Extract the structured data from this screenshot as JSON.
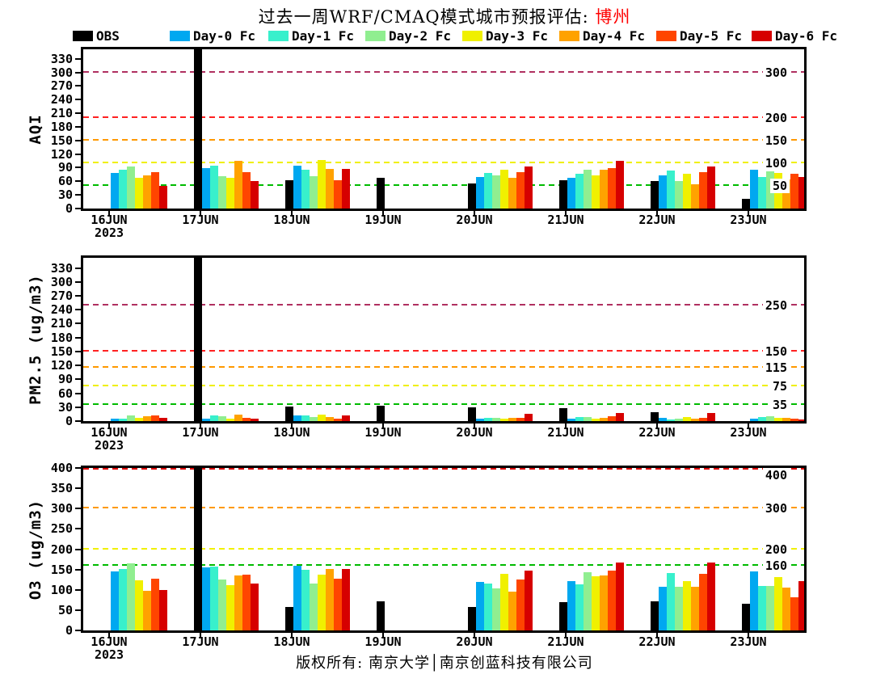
{
  "title": {
    "prefix": "过去一周WRF/CMAQ模式城市预报评估: ",
    "city": "博州",
    "city_color": "#FF0000"
  },
  "legend": {
    "items": [
      {
        "label": "OBS",
        "color": "#000000"
      },
      {
        "label": "Day-0 Fc",
        "color": "#00A8F0"
      },
      {
        "label": "Day-1 Fc",
        "color": "#38F0CC"
      },
      {
        "label": "Day-2 Fc",
        "color": "#90EE90"
      },
      {
        "label": "Day-3 Fc",
        "color": "#F0F000"
      },
      {
        "label": "Day-4 Fc",
        "color": "#FFA200"
      },
      {
        "label": "Day-5 Fc",
        "color": "#FF4500"
      },
      {
        "label": "Day-6 Fc",
        "color": "#D60000"
      }
    ]
  },
  "footer": {
    "text": "版权所有: 南京大学│南京创蓝科技有限公司"
  },
  "x_axis": {
    "categories": [
      "16JUN",
      "17JUN",
      "18JUN",
      "19JUN",
      "20JUN",
      "21JUN",
      "22JUN",
      "23JUN"
    ],
    "year_label": "2023"
  },
  "note": "OBS bars on 17JUN exceed the y-axis range and are clipped at the top of each panel. Missing bars = no data (no OBS on 16JUN; no forecasts on 19JUN).",
  "chart_data": [
    {
      "id": "aqi",
      "type": "bar",
      "title": "AQI",
      "xlabel": "",
      "ylabel": "AQI",
      "ylim": [
        0,
        351
      ],
      "yticks": [
        0,
        30,
        60,
        90,
        120,
        150,
        180,
        210,
        240,
        270,
        300,
        330
      ],
      "grid": "horizontal dashed threshold guides",
      "legend_position": "top",
      "categories": [
        "16JUN",
        "17JUN",
        "18JUN",
        "19JUN",
        "20JUN",
        "21JUN",
        "22JUN",
        "23JUN"
      ],
      "guides": [
        {
          "label": "50",
          "value": 50,
          "color": "#00BB00"
        },
        {
          "label": "100",
          "value": 100,
          "color": "#F0F000"
        },
        {
          "label": "150",
          "value": 150,
          "color": "#FF9900"
        },
        {
          "label": "200",
          "value": 200,
          "color": "#FF2222"
        },
        {
          "label": "300",
          "value": 300,
          "color": "#B03060"
        }
      ],
      "series": [
        {
          "name": "OBS",
          "color": "#000000",
          "values": [
            null,
            360,
            62,
            68,
            55,
            63,
            60,
            22
          ]
        },
        {
          "name": "Day-0 Fc",
          "color": "#00A8F0",
          "values": [
            78,
            90,
            95,
            null,
            70,
            68,
            73,
            85
          ]
        },
        {
          "name": "Day-1 Fc",
          "color": "#38F0CC",
          "values": [
            86,
            95,
            85,
            null,
            78,
            76,
            83,
            70
          ]
        },
        {
          "name": "Day-2 Fc",
          "color": "#90EE90",
          "values": [
            92,
            72,
            72,
            null,
            73,
            85,
            60,
            82
          ]
        },
        {
          "name": "Day-3 Fc",
          "color": "#F0F000",
          "values": [
            67,
            67,
            107,
            null,
            85,
            73,
            76,
            78
          ]
        },
        {
          "name": "Day-4 Fc",
          "color": "#FFA200",
          "values": [
            73,
            105,
            88,
            null,
            68,
            85,
            53,
            65
          ]
        },
        {
          "name": "Day-5 Fc",
          "color": "#FF4500",
          "values": [
            80,
            80,
            63,
            null,
            80,
            90,
            80,
            76
          ]
        },
        {
          "name": "Day-6 Fc",
          "color": "#D60000",
          "values": [
            50,
            60,
            88,
            null,
            93,
            105,
            93,
            70
          ]
        }
      ]
    },
    {
      "id": "pm25",
      "type": "bar",
      "title": "PM2.5",
      "xlabel": "",
      "ylabel": "PM2.5 (ug/m3)",
      "ylim": [
        0,
        352
      ],
      "yticks": [
        0,
        30,
        60,
        90,
        120,
        150,
        180,
        210,
        240,
        270,
        300,
        330
      ],
      "grid": "horizontal dashed threshold guides",
      "legend_position": "top",
      "categories": [
        "16JUN",
        "17JUN",
        "18JUN",
        "19JUN",
        "20JUN",
        "21JUN",
        "22JUN",
        "23JUN"
      ],
      "guides": [
        {
          "label": "35",
          "value": 35,
          "color": "#00BB00"
        },
        {
          "label": "75",
          "value": 75,
          "color": "#F0F000"
        },
        {
          "label": "115",
          "value": 115,
          "color": "#FF9900"
        },
        {
          "label": "150",
          "value": 150,
          "color": "#FF2222"
        },
        {
          "label": "250",
          "value": 250,
          "color": "#B03060"
        }
      ],
      "series": [
        {
          "name": "OBS",
          "color": "#000000",
          "values": [
            null,
            360,
            32,
            34,
            30,
            28,
            20,
            null
          ]
        },
        {
          "name": "Day-0 Fc",
          "color": "#00A8F0",
          "values": [
            5,
            5,
            12,
            null,
            5,
            5,
            7,
            6
          ]
        },
        {
          "name": "Day-1 Fc",
          "color": "#38F0CC",
          "values": [
            5,
            13,
            12,
            null,
            7,
            8,
            4,
            8
          ]
        },
        {
          "name": "Day-2 Fc",
          "color": "#90EE90",
          "values": [
            13,
            10,
            8,
            null,
            7,
            8,
            6,
            11
          ]
        },
        {
          "name": "Day-3 Fc",
          "color": "#F0F000",
          "values": [
            7,
            6,
            14,
            null,
            5,
            6,
            8,
            7
          ]
        },
        {
          "name": "Day-4 Fc",
          "color": "#FFA200",
          "values": [
            10,
            14,
            8,
            null,
            7,
            7,
            6,
            7
          ]
        },
        {
          "name": "Day-5 Fc",
          "color": "#FF4500",
          "values": [
            12,
            7,
            6,
            null,
            7,
            10,
            7,
            6
          ]
        },
        {
          "name": "Day-6 Fc",
          "color": "#D60000",
          "values": [
            7,
            5,
            12,
            null,
            15,
            17,
            17,
            4
          ]
        }
      ]
    },
    {
      "id": "o3",
      "type": "bar",
      "title": "O3",
      "xlabel": "",
      "ylabel": "O3 (ug/m3)",
      "ylim": [
        0,
        400
      ],
      "yticks": [
        0,
        50,
        100,
        150,
        200,
        250,
        300,
        350,
        400
      ],
      "grid": "horizontal dashed threshold guides",
      "legend_position": "top",
      "categories": [
        "16JUN",
        "17JUN",
        "18JUN",
        "19JUN",
        "20JUN",
        "21JUN",
        "22JUN",
        "23JUN"
      ],
      "guides": [
        {
          "label": "160",
          "value": 160,
          "color": "#00BB00"
        },
        {
          "label": "200",
          "value": 200,
          "color": "#F0F000"
        },
        {
          "label": "300",
          "value": 300,
          "color": "#FF9900"
        },
        {
          "label": "400",
          "value": 400,
          "color": "#DD0000"
        }
      ],
      "series": [
        {
          "name": "OBS",
          "color": "#000000",
          "values": [
            null,
            420,
            58,
            72,
            58,
            70,
            72,
            65
          ]
        },
        {
          "name": "Day-0 Fc",
          "color": "#00A8F0",
          "values": [
            145,
            155,
            160,
            null,
            120,
            122,
            108,
            145
          ]
        },
        {
          "name": "Day-1 Fc",
          "color": "#38F0CC",
          "values": [
            152,
            158,
            150,
            null,
            115,
            113,
            142,
            110
          ]
        },
        {
          "name": "Day-2 Fc",
          "color": "#90EE90",
          "values": [
            165,
            125,
            115,
            null,
            103,
            143,
            108,
            110
          ]
        },
        {
          "name": "Day-3 Fc",
          "color": "#F0F000",
          "values": [
            123,
            112,
            138,
            null,
            140,
            133,
            122,
            132
          ]
        },
        {
          "name": "Day-4 Fc",
          "color": "#FFA200",
          "values": [
            98,
            135,
            152,
            null,
            95,
            135,
            108,
            105
          ]
        },
        {
          "name": "Day-5 Fc",
          "color": "#FF4500",
          "values": [
            128,
            138,
            128,
            null,
            125,
            148,
            140,
            82
          ]
        },
        {
          "name": "Day-6 Fc",
          "color": "#D60000",
          "values": [
            100,
            115,
            152,
            null,
            148,
            168,
            168,
            122
          ]
        }
      ]
    }
  ]
}
